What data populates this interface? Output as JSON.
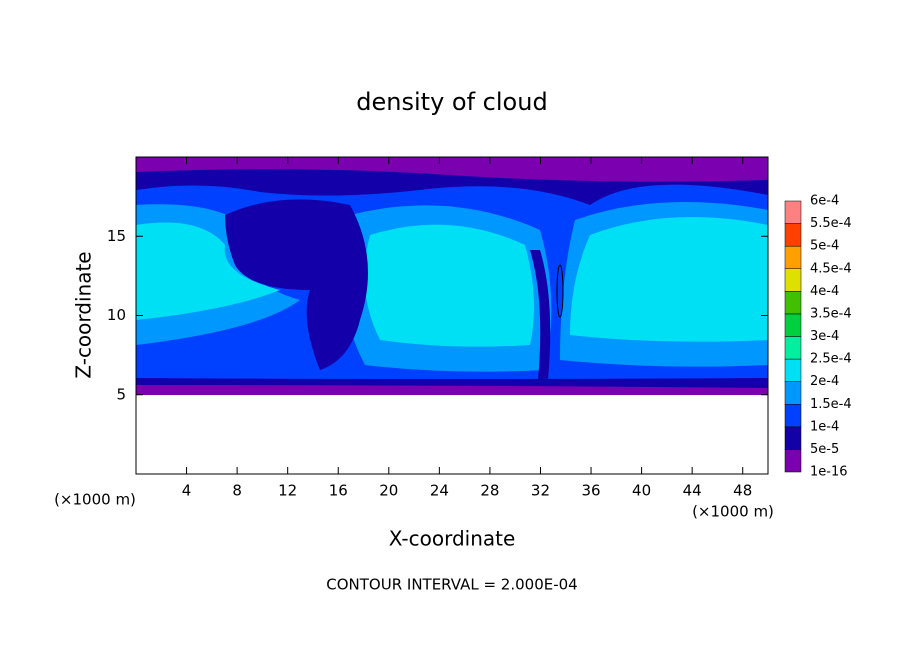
{
  "chart_data": {
    "type": "contour",
    "title": "density of cloud",
    "x_label": "X-coordinate",
    "y_label": "Z-coordinate",
    "x_unit_label": "(×1000 m)",
    "y_unit_label": "(×1000 m)",
    "annotation": "CONTOUR INTERVAL = 2.000E-04",
    "xlim": [
      0,
      50
    ],
    "xticks": [
      4,
      8,
      12,
      16,
      20,
      24,
      28,
      32,
      36,
      40,
      44,
      48
    ],
    "ylim": [
      0,
      20
    ],
    "yticks": [
      5,
      10,
      15
    ],
    "colorbar": {
      "levels": [
        {
          "value": 1e-16,
          "label": "1e-16"
        },
        {
          "value": 5e-05,
          "label": "5e-5"
        },
        {
          "value": 0.0001,
          "label": "1e-4"
        },
        {
          "value": 0.00015,
          "label": "1.5e-4"
        },
        {
          "value": 0.0002,
          "label": "2e-4"
        },
        {
          "value": 0.00025,
          "label": "2.5e-4"
        },
        {
          "value": 0.0003,
          "label": "3e-4"
        },
        {
          "value": 0.00035,
          "label": "3.5e-4"
        },
        {
          "value": 0.0004,
          "label": "4e-4"
        },
        {
          "value": 0.00045,
          "label": "4.5e-4"
        },
        {
          "value": 0.0005,
          "label": "5e-4"
        },
        {
          "value": 0.00055,
          "label": "5.5e-4"
        },
        {
          "value": 0.0006,
          "label": "6e-4"
        }
      ],
      "colors": [
        "#7a00b0",
        "#1400a8",
        "#0040ff",
        "#0098ff",
        "#00e0f4",
        "#00f0a0",
        "#00d040",
        "#40c000",
        "#e0e000",
        "#ffa000",
        "#ff4000",
        "#ff8080"
      ]
    }
  }
}
